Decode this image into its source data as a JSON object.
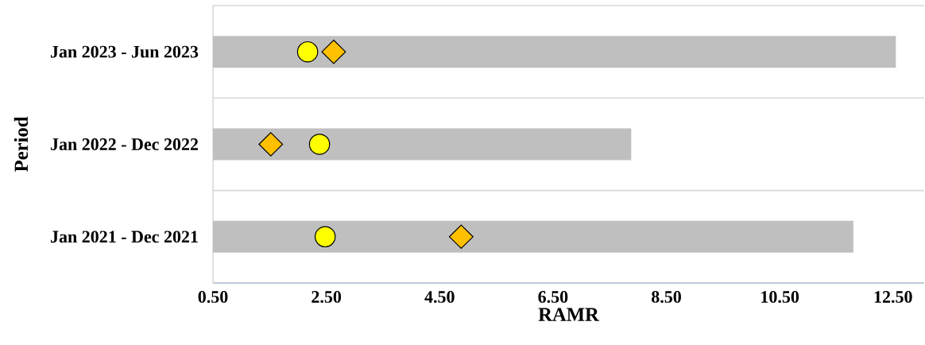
{
  "chart_data": {
    "type": "bar",
    "orientation": "horizontal",
    "xlabel": "RAMR",
    "ylabel": "Period",
    "categories": [
      "Jan 2023 - Jun 2023",
      "Jan 2022 - Dec 2022",
      "Jan 2021 - Dec 2021"
    ],
    "series": [
      {
        "type": "bar",
        "color": "#bfbfbf",
        "values": [
          12.55,
          7.88,
          11.8
        ]
      },
      {
        "type": "scatter",
        "marker": "circle",
        "color": "#ffff00",
        "values": [
          2.17,
          2.38,
          2.48
        ]
      },
      {
        "type": "scatter",
        "marker": "diamond",
        "color": "#ffc000",
        "values": [
          2.63,
          1.52,
          4.88
        ]
      }
    ],
    "xlim": [
      0.5,
      13.05
    ],
    "xticks": [
      {
        "value": 0.5,
        "label": "0.50"
      },
      {
        "value": 2.5,
        "label": "2.50"
      },
      {
        "value": 4.5,
        "label": "4.50"
      },
      {
        "value": 6.5,
        "label": "6.50"
      },
      {
        "value": 8.5,
        "label": "8.50"
      },
      {
        "value": 10.5,
        "label": "10.50"
      },
      {
        "value": 12.5,
        "label": "12.50"
      }
    ],
    "grid": "y"
  }
}
